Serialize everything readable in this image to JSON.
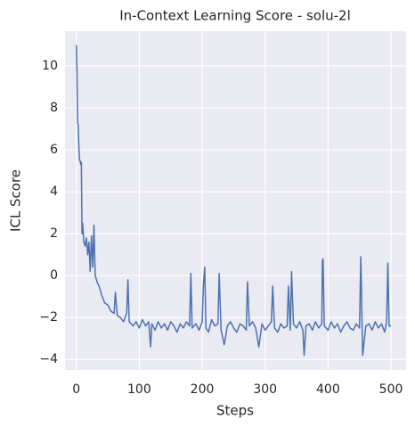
{
  "chart_data": {
    "type": "line",
    "title": "In-Context Learning Score - solu-2l",
    "xlabel": "Steps",
    "ylabel": "ICL Score",
    "grid": true,
    "xlim": [
      -18,
      524
    ],
    "ylim": [
      -4.5,
      11.66
    ],
    "xticks": [
      0,
      100,
      200,
      300,
      400,
      500
    ],
    "yticks": [
      {
        "value": -4,
        "label": "−4"
      },
      {
        "value": -2,
        "label": "−2"
      },
      0,
      2,
      4,
      6,
      8,
      10
    ],
    "x": [
      0,
      1,
      2,
      3,
      4,
      5,
      6,
      7,
      8,
      9,
      10,
      12,
      14,
      16,
      18,
      20,
      22,
      24,
      26,
      28,
      30,
      33,
      36,
      40,
      45,
      50,
      55,
      60,
      62,
      65,
      70,
      75,
      80,
      82,
      84,
      90,
      95,
      100,
      105,
      110,
      115,
      118,
      120,
      125,
      130,
      135,
      140,
      145,
      150,
      155,
      160,
      165,
      170,
      175,
      180,
      182,
      184,
      190,
      195,
      200,
      202,
      204,
      206,
      210,
      215,
      220,
      225,
      227,
      230,
      235,
      240,
      245,
      250,
      255,
      260,
      265,
      270,
      272,
      275,
      280,
      285,
      290,
      295,
      300,
      305,
      310,
      312,
      315,
      320,
      325,
      330,
      335,
      337,
      340,
      342,
      345,
      350,
      355,
      360,
      362,
      365,
      370,
      375,
      380,
      385,
      390,
      391,
      392,
      394,
      400,
      405,
      410,
      415,
      420,
      425,
      430,
      435,
      440,
      445,
      450,
      452,
      455,
      460,
      465,
      470,
      475,
      480,
      485,
      490,
      493,
      495,
      497,
      500
    ],
    "series": [
      {
        "name": "ICL Score",
        "color": "#4c72b0",
        "values": [
          11.0,
          9.8,
          7.3,
          7.2,
          6.2,
          5.5,
          5.5,
          5.3,
          5.4,
          2.0,
          2.5,
          1.6,
          1.4,
          1.8,
          1.0,
          1.6,
          0.2,
          1.9,
          0.4,
          2.4,
          0.0,
          -0.3,
          -0.5,
          -0.9,
          -1.3,
          -1.4,
          -1.7,
          -1.8,
          -0.8,
          -1.9,
          -2.0,
          -2.2,
          -1.8,
          -0.2,
          -2.2,
          -2.4,
          -2.2,
          -2.5,
          -2.1,
          -2.4,
          -2.2,
          -3.4,
          -2.3,
          -2.6,
          -2.2,
          -2.5,
          -2.3,
          -2.6,
          -2.2,
          -2.4,
          -2.7,
          -2.3,
          -2.5,
          -2.2,
          -2.4,
          0.1,
          -2.5,
          -2.3,
          -2.6,
          -2.2,
          -0.4,
          0.4,
          -2.5,
          -2.7,
          -2.1,
          -2.4,
          -2.3,
          0.1,
          -2.6,
          -3.3,
          -2.4,
          -2.2,
          -2.5,
          -2.7,
          -2.3,
          -2.4,
          -2.6,
          -0.3,
          -2.4,
          -2.2,
          -2.5,
          -3.4,
          -2.3,
          -2.6,
          -2.4,
          -2.2,
          -0.5,
          -2.5,
          -2.7,
          -2.3,
          -2.5,
          -2.4,
          -0.5,
          -2.6,
          0.2,
          -2.3,
          -2.5,
          -2.2,
          -2.6,
          -3.8,
          -2.4,
          -2.3,
          -2.6,
          -2.2,
          -2.5,
          -2.3,
          0.7,
          0.8,
          -2.4,
          -2.6,
          -2.2,
          -2.5,
          -2.3,
          -2.7,
          -2.4,
          -2.2,
          -2.5,
          -2.6,
          -2.3,
          -2.5,
          0.9,
          -3.8,
          -2.4,
          -2.3,
          -2.6,
          -2.2,
          -2.5,
          -2.3,
          -2.7,
          -2.2,
          0.6,
          -2.4,
          -2.4
        ]
      }
    ]
  }
}
